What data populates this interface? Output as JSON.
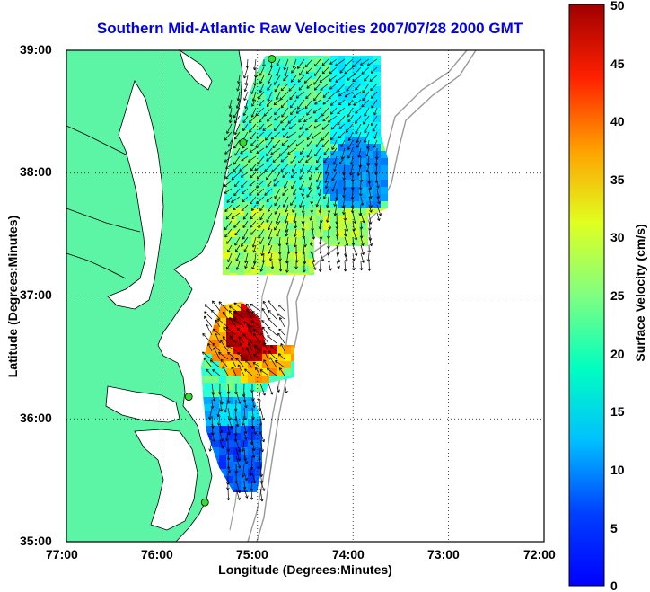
{
  "title": "Southern Mid-Atlantic Raw Velocities 2007/07/28 2000 GMT",
  "xlabel": "Longitude (Degrees:Minutes)",
  "ylabel": "Latitude (Degrees:Minutes)",
  "colorbar_label": "Surface Velocity (cm/s)",
  "lon_ticks": [
    "77:00",
    "76:00",
    "75:00",
    "74:00",
    "73:00",
    "72:00"
  ],
  "lat_ticks": [
    "39:00",
    "38:00",
    "37:00",
    "36:00",
    "35:00"
  ],
  "cb_ticks": [
    "50",
    "45",
    "40",
    "35",
    "30",
    "25",
    "20",
    "15",
    "10",
    "5",
    "0"
  ],
  "chart_data": {
    "type": "heatmap",
    "xlim": [
      -77,
      -72
    ],
    "ylim": [
      35,
      39
    ],
    "clim": [
      0,
      50
    ],
    "grid": true,
    "colormap": "jet",
    "colors": {
      "land": "#5cf5a6",
      "coast": "#000000",
      "bathymetry": "#999999",
      "title": "#0000ee"
    },
    "fields": [
      {
        "region": "northern field",
        "lon": [
          -75.1,
          -73.7
        ],
        "lat": [
          37.25,
          38.9
        ],
        "speed_range": [
          10,
          30
        ]
      },
      {
        "region": "southern field",
        "lon": [
          -75.5,
          -74.6
        ],
        "lat": [
          35.5,
          37.1
        ],
        "speed_range": [
          5,
          50
        ]
      }
    ],
    "stations": [
      {
        "lon": -74.85,
        "lat": 38.93
      },
      {
        "lon": -75.15,
        "lat": 38.25
      },
      {
        "lon": -75.72,
        "lat": 36.18
      },
      {
        "lon": -75.55,
        "lat": 35.32
      }
    ]
  }
}
